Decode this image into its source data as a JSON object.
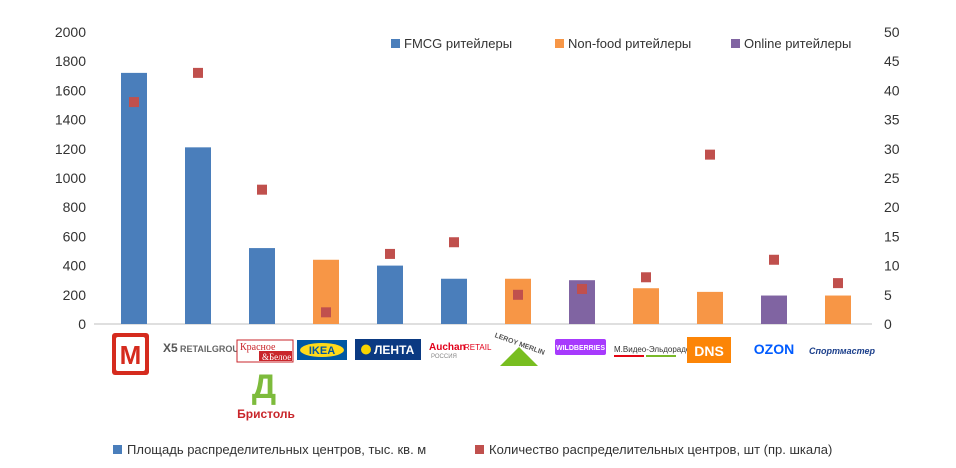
{
  "chart_data": {
    "type": "bar",
    "categories": [
      "Магнит",
      "X5 Retail Group",
      "Красное & Белое / Бристоль",
      "IKEA",
      "Лента",
      "Auchan Retail Россия",
      "Leroy Merlin",
      "Wildberries",
      "М.Видео-Эльдорадо",
      "DNS",
      "OZON",
      "Спортмастер"
    ],
    "series": [
      {
        "name": "Площадь распределительных центров, тыс. кв. м",
        "axis": "left",
        "kind": "bar",
        "values": [
          1720,
          1210,
          520,
          440,
          400,
          310,
          310,
          300,
          245,
          220,
          195,
          195
        ]
      },
      {
        "name": "Количество распределительных центров, шт (пр. шкала)",
        "axis": "right",
        "kind": "point",
        "values": [
          38,
          43,
          23,
          2,
          12,
          14,
          5,
          6,
          8,
          29,
          11,
          7
        ]
      }
    ],
    "bar_groups": [
      "fmcg",
      "fmcg",
      "fmcg",
      "nonfood",
      "fmcg",
      "fmcg",
      "nonfood",
      "online",
      "nonfood",
      "nonfood",
      "online",
      "nonfood"
    ],
    "group_legend": [
      {
        "key": "fmcg",
        "label": "FMCG ритейлеры",
        "color": "#4a7ebb"
      },
      {
        "key": "nonfood",
        "label": "Non-food ритейлеры",
        "color": "#f79646"
      },
      {
        "key": "online",
        "label": "Online ритейлеры",
        "color": "#8064a2"
      }
    ],
    "bar_legend_color": "#4a7ebb",
    "point_color": "#c0504d",
    "y_left": {
      "min": 0,
      "max": 2000,
      "step": 200,
      "ticks": [
        "0",
        "200",
        "400",
        "600",
        "800",
        "1000",
        "1200",
        "1400",
        "1600",
        "1800",
        "2000"
      ]
    },
    "y_right": {
      "min": 0,
      "max": 50,
      "step": 5,
      "ticks": [
        "0",
        "5",
        "10",
        "15",
        "20",
        "25",
        "30",
        "35",
        "40",
        "45",
        "50"
      ]
    },
    "grid": false,
    "legend_top_position": "top-right",
    "legend_bottom_position": "bottom"
  },
  "logos": {
    "magnit": "М",
    "x5": "X5",
    "x5_sub": "RETAILGROUP",
    "kb_1": "Красное",
    "kb_2": "&Белое",
    "bristol": "Бристоль",
    "bristol_mark": "Д",
    "ikea": "IKEA",
    "lenta": "ЛЕНТА",
    "auchan": "Auchan",
    "auchan_retail": "RETAIL",
    "auchan_sub": "РОССИЯ",
    "leroy": "LEROY MERLIN",
    "wildberries": "WILDBERRIES",
    "mvideo": "М.Видео-Эльдорадо",
    "dns": "DNS",
    "ozon": "OZON",
    "sport": "Спортмастер"
  }
}
